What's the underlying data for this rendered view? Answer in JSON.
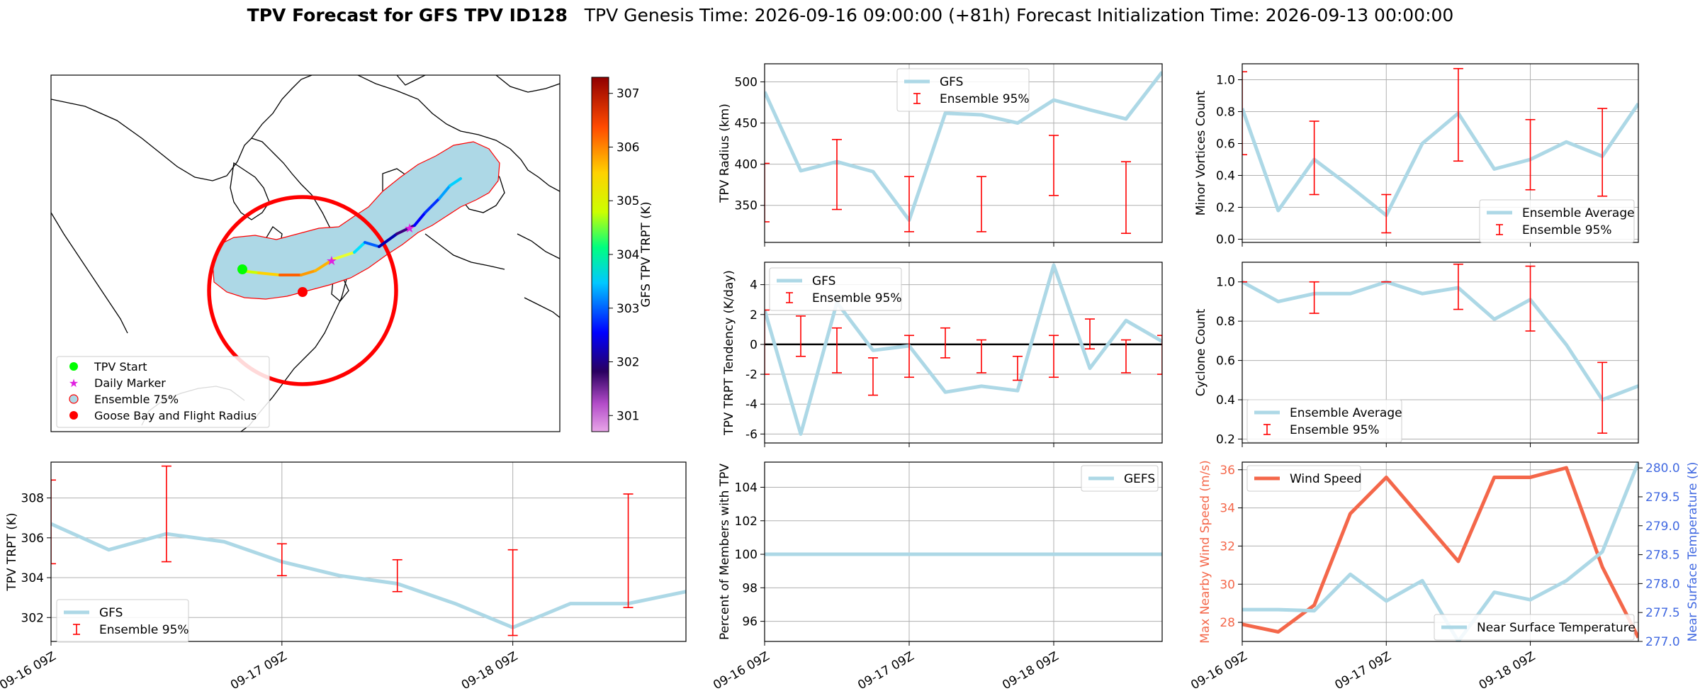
{
  "header": {
    "title_bold": "TPV Forecast for GFS TPV ID128",
    "title_rest": "TPV Genesis Time: 2026-09-16 09:00:00 (+81h)   Forecast Initialization Time: 2026-09-13 00:00:00"
  },
  "colors": {
    "gfs_line": "#add8e6",
    "ensemble_error": "#ff0000",
    "wind_line": "#f4674a",
    "temp_axis": "#4169e1",
    "zero_line": "#000000",
    "grid": "#b0b0b0"
  },
  "legends": {
    "gfs": "GFS",
    "gefs": "GEFS",
    "ensemble95": "Ensemble 95%",
    "ensemble_average": "Ensemble Average",
    "wind_speed": "Wind Speed",
    "near_surface_temperature": "Near Surface Temperature",
    "map": [
      "TPV Start",
      "Daily Marker",
      "Ensemble 75%",
      "Goose Bay and Flight Radius"
    ]
  },
  "chart_data": [
    {
      "id": "map",
      "type": "scatter",
      "colorbar": {
        "label": "GFS TPV TRPT (K)",
        "ticks": [
          301,
          302,
          303,
          304,
          305,
          306,
          307
        ],
        "range": [
          300.7,
          307.3
        ]
      },
      "legend": [
        "TPV Start",
        "Daily Marker",
        "Ensemble 75%",
        "Goose Bay and Flight Radius"
      ],
      "legend_position": "lower-left"
    },
    {
      "id": "trpt",
      "type": "line",
      "ylabel": "TPV TRPT (K)",
      "xlabel": "",
      "ylim": [
        300.8,
        309.8
      ],
      "yticks": [
        302,
        304,
        306,
        308
      ],
      "x_ticks": [
        "09-16 09Z",
        "09-17 09Z",
        "09-18 09Z"
      ],
      "x_tick_pos": [
        0,
        8,
        16
      ],
      "xlim": [
        0,
        22
      ],
      "legend_position": "lower-left",
      "series": [
        {
          "name": "GFS",
          "x": [
            0,
            2,
            4,
            6,
            8,
            10,
            12,
            14,
            16,
            18,
            20,
            22
          ],
          "values": [
            306.7,
            305.4,
            306.2,
            305.8,
            304.8,
            304.1,
            303.7,
            302.7,
            301.5,
            302.7,
            302.7,
            303.3
          ]
        }
      ],
      "errorbars": {
        "name": "Ensemble 95%",
        "x": [
          0,
          4,
          8,
          12,
          16,
          20
        ],
        "low": [
          304.7,
          304.8,
          304.1,
          303.3,
          301.1,
          302.5
        ],
        "high": [
          308.9,
          309.6,
          305.7,
          304.9,
          305.4,
          308.2
        ]
      }
    },
    {
      "id": "radius",
      "type": "line",
      "ylabel": "TPV Radius (km)",
      "ylim": [
        305,
        522
      ],
      "yticks": [
        350,
        400,
        450,
        500
      ],
      "x_ticks": [
        "",
        "",
        ""
      ],
      "x_tick_pos": [
        0,
        8,
        16
      ],
      "xlim": [
        0,
        22
      ],
      "legend_position": "upper-center",
      "series": [
        {
          "name": "GFS",
          "x": [
            0,
            2,
            4,
            6,
            8,
            10,
            12,
            14,
            16,
            18,
            20,
            22
          ],
          "values": [
            488,
            392,
            403,
            391,
            332,
            462,
            460,
            450,
            478,
            466,
            455,
            512
          ]
        }
      ],
      "errorbars": {
        "name": "Ensemble 95%",
        "x": [
          0,
          4,
          8,
          12,
          16,
          20
        ],
        "low": [
          330,
          345,
          318,
          318,
          362,
          316
        ],
        "high": [
          401,
          430,
          385,
          385,
          435,
          403
        ]
      }
    },
    {
      "id": "minor",
      "type": "line",
      "ylabel": "Minor Vortices Count",
      "ylim": [
        -0.02,
        1.1
      ],
      "yticks": [
        0.0,
        0.2,
        0.4,
        0.6,
        0.8,
        1.0
      ],
      "x_ticks": [
        "",
        "",
        ""
      ],
      "x_tick_pos": [
        0,
        8,
        16
      ],
      "xlim": [
        0,
        22
      ],
      "legend_position": "lower-right",
      "series": [
        {
          "name": "Ensemble Average",
          "x": [
            0,
            2,
            4,
            6,
            8,
            10,
            12,
            14,
            16,
            18,
            20,
            22
          ],
          "values": [
            0.82,
            0.18,
            0.5,
            0.33,
            0.15,
            0.6,
            0.79,
            0.44,
            0.5,
            0.61,
            0.52,
            0.85
          ]
        }
      ],
      "errorbars": {
        "name": "Ensemble 95%",
        "x": [
          0,
          4,
          8,
          12,
          16,
          20
        ],
        "low": [
          0.53,
          0.28,
          0.04,
          0.49,
          0.31,
          0.27
        ],
        "high": [
          1.05,
          0.74,
          0.28,
          1.07,
          0.75,
          0.82
        ]
      }
    },
    {
      "id": "tendency",
      "type": "line",
      "ylabel": "TPV TRPT Tendency (K/day)",
      "ylim": [
        -6.6,
        5.5
      ],
      "yticks": [
        -6,
        -4,
        -2,
        0,
        2,
        4
      ],
      "x_ticks": [
        "",
        "",
        ""
      ],
      "x_tick_pos": [
        0,
        8,
        16
      ],
      "xlim": [
        0,
        22
      ],
      "zero_line": 0,
      "legend_position": "upper-left",
      "series": [
        {
          "name": "GFS",
          "x": [
            0,
            2,
            4,
            6,
            8,
            10,
            12,
            14,
            16,
            18,
            20,
            22
          ],
          "values": [
            2.3,
            -6.0,
            2.8,
            -0.4,
            -0.1,
            -3.2,
            -2.8,
            -3.1,
            5.3,
            -1.6,
            1.6,
            0.2
          ]
        }
      ],
      "errorbars": {
        "name": "Ensemble 95%",
        "x": [
          0,
          2,
          4,
          6,
          8,
          10,
          12,
          14,
          16,
          18,
          20,
          22
        ],
        "low": [
          -2.0,
          -0.8,
          -1.9,
          -3.4,
          -2.2,
          -0.9,
          -1.9,
          -2.4,
          -2.2,
          -0.3,
          -1.9,
          -2.0
        ],
        "high": [
          2.3,
          1.9,
          1.1,
          -0.9,
          0.6,
          1.1,
          0.3,
          -0.8,
          0.6,
          1.7,
          0.3,
          0.6
        ]
      }
    },
    {
      "id": "cyclone",
      "type": "line",
      "ylabel": "Cyclone Count",
      "ylim": [
        0.18,
        1.1
      ],
      "yticks": [
        0.2,
        0.4,
        0.6,
        0.8,
        1.0
      ],
      "x_ticks": [
        "",
        "",
        ""
      ],
      "x_tick_pos": [
        0,
        8,
        16
      ],
      "xlim": [
        0,
        22
      ],
      "legend_position": "lower-left",
      "series": [
        {
          "name": "Ensemble Average",
          "x": [
            0,
            2,
            4,
            6,
            8,
            10,
            12,
            14,
            16,
            18,
            20,
            22
          ],
          "values": [
            1.0,
            0.9,
            0.94,
            0.94,
            1.0,
            0.94,
            0.97,
            0.81,
            0.91,
            0.68,
            0.4,
            0.47
          ]
        }
      ],
      "errorbars": {
        "name": "Ensemble 95%",
        "x": [
          0,
          4,
          8,
          12,
          16,
          20
        ],
        "low": [
          1.0,
          0.84,
          1.0,
          0.86,
          0.75,
          0.23
        ],
        "high": [
          1.0,
          1.0,
          1.0,
          1.09,
          1.08,
          0.59
        ]
      }
    },
    {
      "id": "members",
      "type": "line",
      "ylabel": "Percent of Members with TPV",
      "ylim": [
        94.8,
        105.5
      ],
      "yticks": [
        96,
        98,
        100,
        102,
        104
      ],
      "x_ticks": [
        "09-16 09Z",
        "09-17 09Z",
        "09-18 09Z"
      ],
      "x_tick_pos": [
        0,
        8,
        16
      ],
      "xlim": [
        0,
        22
      ],
      "legend_position": "upper-right",
      "series": [
        {
          "name": "GEFS",
          "x": [
            0,
            22
          ],
          "values": [
            100,
            100
          ]
        }
      ]
    },
    {
      "id": "wind",
      "type": "line",
      "ylabel": "Max Nearby Wind Speed (m/s)",
      "ylabel_right": "Near Surface Temperature (K)",
      "ylim": [
        27.0,
        36.4
      ],
      "yticks": [
        28,
        30,
        32,
        34,
        36
      ],
      "ylim_right": [
        277.0,
        280.1
      ],
      "yticks_right": [
        277.0,
        277.5,
        278.0,
        278.5,
        279.0,
        279.5,
        280.0
      ],
      "x_ticks": [
        "09-16 09Z",
        "09-17 09Z",
        "09-18 09Z"
      ],
      "x_tick_pos": [
        0,
        8,
        16
      ],
      "xlim": [
        0,
        22
      ],
      "series": [
        {
          "name": "Wind Speed",
          "axis": "left",
          "x": [
            0,
            2,
            4,
            6,
            8,
            10,
            12,
            14,
            16,
            18,
            20,
            22
          ],
          "values": [
            27.9,
            27.5,
            28.9,
            33.7,
            35.6,
            33.4,
            31.2,
            35.6,
            35.6,
            36.1,
            30.9,
            27.2
          ]
        },
        {
          "name": "Near Surface Temperature",
          "axis": "right",
          "x": [
            0,
            2,
            4,
            6,
            8,
            10,
            12,
            14,
            16,
            18,
            20,
            22
          ],
          "values": [
            277.55,
            277.55,
            277.53,
            278.16,
            277.7,
            278.05,
            277.0,
            277.85,
            277.72,
            278.05,
            278.55,
            280.1
          ]
        }
      ]
    }
  ]
}
